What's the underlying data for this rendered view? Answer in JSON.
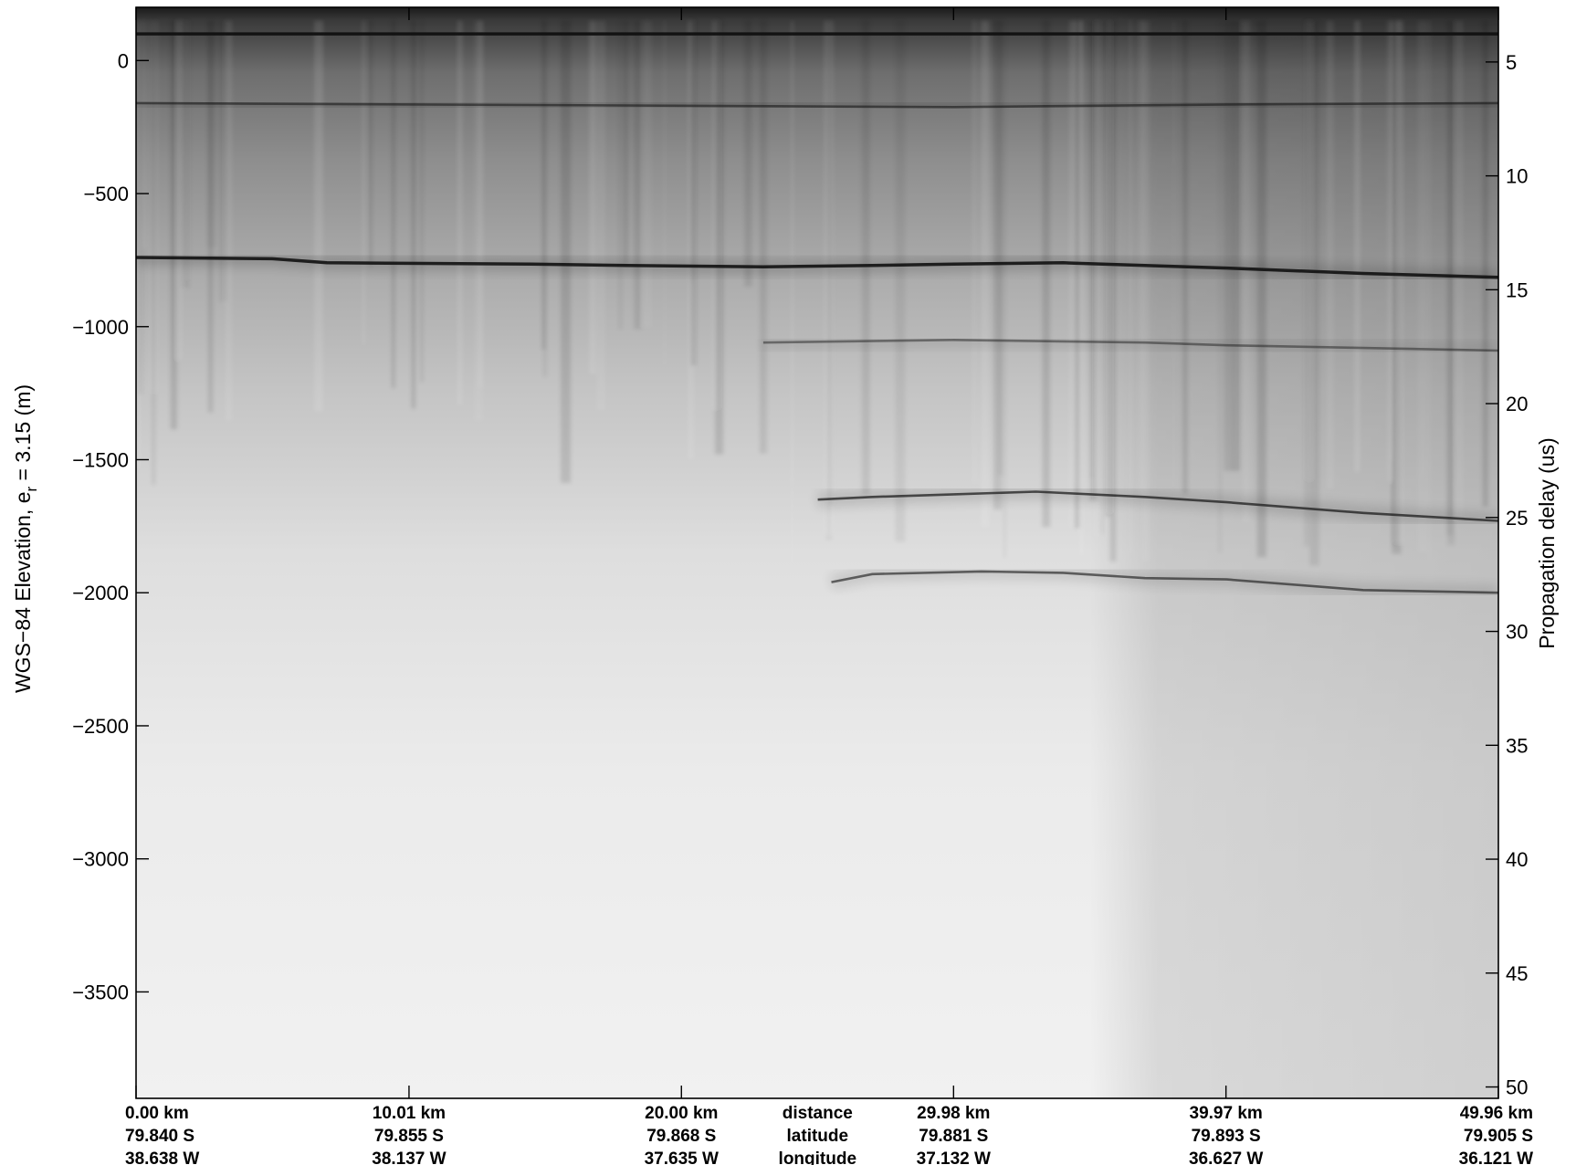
{
  "chart_data": {
    "type": "heatmap",
    "title": "",
    "colormap": "grayscale (dark = strong return)",
    "ylabel_left": {
      "text": "WGS−84 Elevation, e",
      "subscript": "r",
      "suffix": " = 3.15 (m)"
    },
    "ylabel_right": "Propagation delay (us)",
    "y_left": {
      "range": [
        200,
        -3900
      ],
      "ticks": [
        0,
        -500,
        -1000,
        -1500,
        -2000,
        -2500,
        -3000,
        -3500
      ],
      "tick_labels": [
        "0",
        "−500",
        "−1000",
        "−1500",
        "−2000",
        "−2500",
        "−3000",
        "−3500"
      ]
    },
    "y_right": {
      "range": [
        2.6,
        50.5
      ],
      "ticks": [
        5,
        10,
        15,
        20,
        25,
        30,
        35,
        40,
        45,
        50
      ],
      "tick_labels": [
        "5",
        "10",
        "15",
        "20",
        "25",
        "30",
        "35",
        "40",
        "45",
        "50"
      ]
    },
    "x": {
      "range": [
        0,
        49.96
      ],
      "ticks": [
        0,
        10.01,
        20.0,
        29.98,
        39.97,
        49.96
      ]
    },
    "x_labels": {
      "distance": [
        "0.00 km",
        "10.01 km",
        "20.00 km",
        "29.98 km",
        "39.97 km",
        "49.96 km"
      ],
      "latitude": [
        "79.840 S",
        "79.855 S",
        "79.868 S",
        "79.881 S",
        "79.893 S",
        "79.905 S"
      ],
      "longitude": [
        "38.638 W",
        "38.137 W",
        "37.635 W",
        "37.132 W",
        "36.627 W",
        "36.121 W"
      ]
    },
    "x_row_names": [
      "distance",
      "latitude",
      "longitude"
    ],
    "reflectors": [
      {
        "name": "surface",
        "points": [
          [
            0,
            100
          ],
          [
            49.96,
            100
          ]
        ],
        "strength": 0.95
      },
      {
        "name": "firn layer",
        "points": [
          [
            0,
            -160
          ],
          [
            20,
            -170
          ],
          [
            30,
            -175
          ],
          [
            40,
            -165
          ],
          [
            49.96,
            -160
          ]
        ],
        "strength": 0.55
      },
      {
        "name": "shallow bed",
        "points": [
          [
            0,
            -740
          ],
          [
            5,
            -745
          ],
          [
            7,
            -760
          ],
          [
            14.5,
            -765
          ],
          [
            18,
            -770
          ],
          [
            23,
            -775
          ],
          [
            27,
            -770
          ],
          [
            30,
            -765
          ],
          [
            34,
            -760
          ],
          [
            37,
            -770
          ],
          [
            40,
            -780
          ],
          [
            45,
            -800
          ],
          [
            49.96,
            -815
          ]
        ],
        "strength": 0.9
      },
      {
        "name": "internal layer 1",
        "points": [
          [
            23,
            -1060
          ],
          [
            30,
            -1050
          ],
          [
            37,
            -1060
          ],
          [
            40,
            -1070
          ],
          [
            45,
            -1080
          ],
          [
            49.96,
            -1090
          ]
        ],
        "strength": 0.45
      },
      {
        "name": "internal layer 2",
        "points": [
          [
            25,
            -1650
          ],
          [
            27,
            -1640
          ],
          [
            30,
            -1630
          ],
          [
            33,
            -1620
          ],
          [
            37,
            -1640
          ],
          [
            40,
            -1660
          ],
          [
            45,
            -1700
          ],
          [
            49.96,
            -1730
          ]
        ],
        "strength": 0.7
      },
      {
        "name": "deep layer",
        "points": [
          [
            25.5,
            -1960
          ],
          [
            27,
            -1930
          ],
          [
            31,
            -1920
          ],
          [
            34,
            -1925
          ],
          [
            37,
            -1945
          ],
          [
            40,
            -1950
          ],
          [
            45,
            -1990
          ],
          [
            49.96,
            -2000
          ]
        ],
        "strength": 0.6
      }
    ],
    "grid": false
  }
}
